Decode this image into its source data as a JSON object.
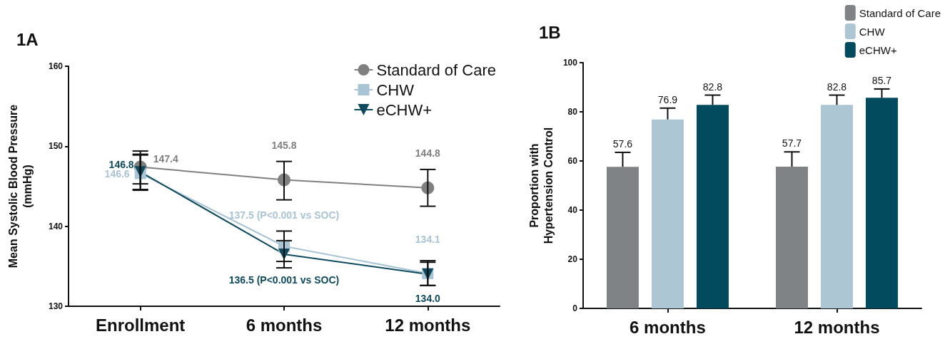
{
  "chart_data": [
    {
      "type": "line",
      "title": "1A",
      "ylabel": "Mean Systolic Blood Pressure\n(mmHg)",
      "categories": [
        "Enrollment",
        "6 months",
        "12 months"
      ],
      "ylim": [
        130,
        160
      ],
      "yticks": [
        130,
        140,
        150,
        160
      ],
      "legend": "top right",
      "series": [
        {
          "name": "Standard of Care",
          "color": "#808080",
          "marker": "circle",
          "values": [
            147.4,
            145.8,
            144.8
          ],
          "errors": [
            [
              145.3,
              149.4
            ],
            [
              143.3,
              148.1
            ],
            [
              142.5,
              147.1
            ]
          ],
          "value_labels": [
            "147.4",
            "145.8",
            "144.8"
          ]
        },
        {
          "name": "CHW",
          "color": "#a9c4d4",
          "marker": "square",
          "values": [
            146.6,
            137.5,
            134.1
          ],
          "errors": [
            [
              144.6,
              148.9
            ],
            [
              135.6,
              139.4
            ],
            [
              132.6,
              135.7
            ]
          ],
          "value_labels": [
            "146.6",
            "137.5 (P<0.001 vs SOC)",
            "134.1"
          ]
        },
        {
          "name": "eCHW+",
          "color": "#0d4a5e",
          "marker": "triangle",
          "values": [
            146.8,
            136.5,
            134.0
          ],
          "errors": [
            [
              144.5,
              149.0
            ],
            [
              134.8,
              138.2
            ],
            [
              132.6,
              135.5
            ]
          ],
          "value_labels": [
            "146.8",
            "136.5 (P<0.001 vs SOC)",
            "134.0"
          ]
        }
      ]
    },
    {
      "type": "bar",
      "title": "1B",
      "ylabel": "Proportion with\nHypertension Control",
      "categories": [
        "6 months",
        "12 months"
      ],
      "ylim": [
        0,
        100
      ],
      "yticks": [
        0,
        20,
        40,
        60,
        80,
        100
      ],
      "legend": "top right",
      "data_labels": true,
      "series": [
        {
          "name": "Standard of Care",
          "color": "#7f8386",
          "values": [
            57.6,
            57.7
          ],
          "errors": [
            [
              57.6,
              63.5
            ],
            [
              57.7,
              63.7
            ]
          ]
        },
        {
          "name": "CHW",
          "color": "#adc6d4",
          "values": [
            76.9,
            82.8
          ],
          "errors": [
            [
              76.9,
              81.5
            ],
            [
              82.8,
              86.8
            ]
          ]
        },
        {
          "name": "eCHW+",
          "color": "#024a5e",
          "values": [
            82.8,
            85.7
          ],
          "errors": [
            [
              82.8,
              86.8
            ],
            [
              85.7,
              89.3
            ]
          ]
        }
      ]
    }
  ]
}
